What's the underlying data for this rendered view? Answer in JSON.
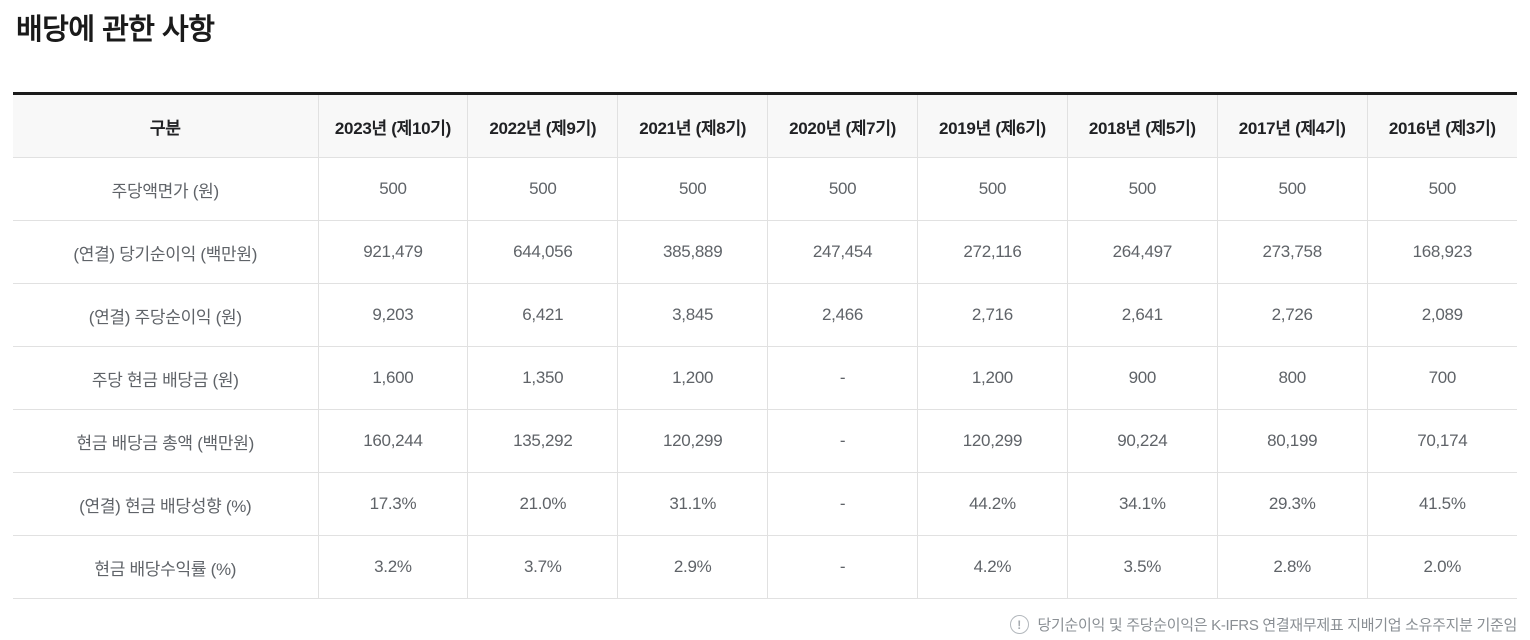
{
  "page": {
    "title": "배당에 관한 사항"
  },
  "table": {
    "corner_header": "구분",
    "columns": [
      "2023년 (제10기)",
      "2022년 (제9기)",
      "2021년 (제8기)",
      "2020년 (제7기)",
      "2019년 (제6기)",
      "2018년 (제5기)",
      "2017년 (제4기)",
      "2016년 (제3기)"
    ],
    "rows": [
      {
        "label": "주당액면가 (원)",
        "values": [
          "500",
          "500",
          "500",
          "500",
          "500",
          "500",
          "500",
          "500"
        ]
      },
      {
        "label": "(연결) 당기순이익 (백만원)",
        "values": [
          "921,479",
          "644,056",
          "385,889",
          "247,454",
          "272,116",
          "264,497",
          "273,758",
          "168,923"
        ]
      },
      {
        "label": "(연결) 주당순이익 (원)",
        "values": [
          "9,203",
          "6,421",
          "3,845",
          "2,466",
          "2,716",
          "2,641",
          "2,726",
          "2,089"
        ]
      },
      {
        "label": "주당 현금 배당금 (원)",
        "values": [
          "1,600",
          "1,350",
          "1,200",
          "-",
          "1,200",
          "900",
          "800",
          "700"
        ]
      },
      {
        "label": "현금 배당금 총액 (백만원)",
        "values": [
          "160,244",
          "135,292",
          "120,299",
          "-",
          "120,299",
          "90,224",
          "80,199",
          "70,174"
        ]
      },
      {
        "label": "(연결) 현금 배당성향 (%)",
        "values": [
          "17.3%",
          "21.0%",
          "31.1%",
          "-",
          "44.2%",
          "34.1%",
          "29.3%",
          "41.5%"
        ]
      },
      {
        "label": "현금 배당수익률 (%)",
        "values": [
          "3.2%",
          "3.7%",
          "2.9%",
          "-",
          "4.2%",
          "3.5%",
          "2.8%",
          "2.0%"
        ]
      }
    ]
  },
  "footnote": {
    "icon": "exclamation-circle-icon",
    "icon_glyph": "!",
    "text": "당기순이익 및 주당순이익은 K-IFRS 연결재무제표 지배기업 소유주지분 기준임"
  },
  "colors": {
    "table_top_border": "#1b1b1b",
    "header_background": "#f8f8f8",
    "grid_line": "#e1e1e1",
    "header_text": "#202124",
    "body_text": "#5f6368",
    "note_text": "#8a8f94",
    "title_text": "#1a1a1a"
  }
}
